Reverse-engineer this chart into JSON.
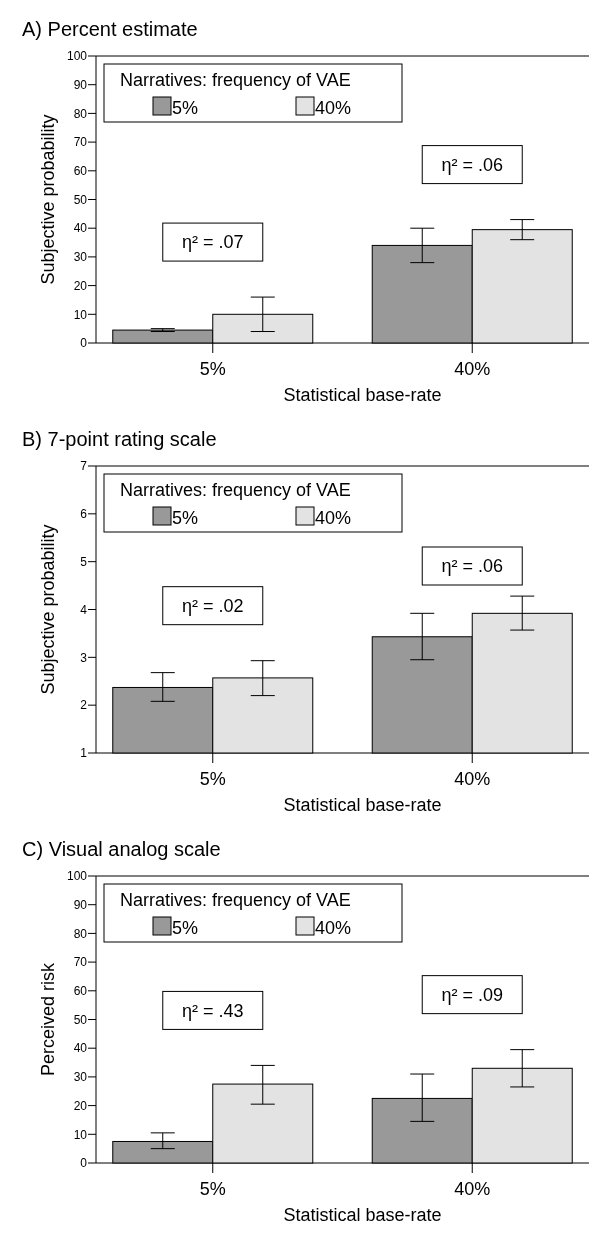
{
  "chart_data": [
    {
      "type": "bar",
      "title": "A) Percent estimate",
      "xlabel": "Statistical base-rate",
      "ylabel": "Subjective probability",
      "legend_title": "Narratives: frequency of VAE",
      "legend": "top left",
      "categories": [
        "5%",
        "40%"
      ],
      "series": [
        {
          "name": "5%",
          "color": "#999999",
          "values": [
            4.5,
            34
          ],
          "errors": [
            [
              4,
              5
            ],
            [
              28,
              40
            ]
          ]
        },
        {
          "name": "40%",
          "color": "#e3e3e3",
          "values": [
            10,
            39.5
          ],
          "errors": [
            [
              4,
              16
            ],
            [
              36,
              43
            ]
          ]
        }
      ],
      "ylim": [
        0,
        100
      ],
      "yticks": [
        0,
        10,
        20,
        30,
        40,
        50,
        60,
        70,
        80,
        90,
        100
      ],
      "annotations": [
        "η² = .07",
        "η² = .06"
      ]
    },
    {
      "type": "bar",
      "title": "B) 7-point rating scale",
      "xlabel": "Statistical base-rate",
      "ylabel": "Subjective probability",
      "legend_title": "Narratives: frequency of VAE",
      "legend": "top left",
      "categories": [
        "5%",
        "40%"
      ],
      "series": [
        {
          "name": "5%",
          "color": "#999999",
          "values": [
            2.37,
            3.43
          ],
          "errors": [
            [
              2.08,
              2.68
            ],
            [
              2.95,
              3.92
            ]
          ]
        },
        {
          "name": "40%",
          "color": "#e3e3e3",
          "values": [
            2.57,
            3.92
          ],
          "errors": [
            [
              2.2,
              2.93
            ],
            [
              3.57,
              4.28
            ]
          ]
        }
      ],
      "ylim": [
        1,
        7
      ],
      "yticks": [
        1,
        2,
        3,
        4,
        5,
        6,
        7
      ],
      "annotations": [
        "η² = .02",
        "η² = .06"
      ]
    },
    {
      "type": "bar",
      "title": "C) Visual analog scale",
      "xlabel": "Statistical base-rate",
      "ylabel": "Perceived risk",
      "legend_title": "Narratives: frequency of VAE",
      "legend": "top left",
      "categories": [
        "5%",
        "40%"
      ],
      "series": [
        {
          "name": "5%",
          "color": "#999999",
          "values": [
            7.5,
            22.5
          ],
          "errors": [
            [
              5,
              10.5
            ],
            [
              14.5,
              31
            ]
          ]
        },
        {
          "name": "40%",
          "color": "#e3e3e3",
          "values": [
            27.5,
            33
          ],
          "errors": [
            [
              20.5,
              34
            ],
            [
              26.5,
              39.5
            ]
          ]
        }
      ],
      "ylim": [
        0,
        100
      ],
      "yticks": [
        0,
        10,
        20,
        30,
        40,
        50,
        60,
        70,
        80,
        90,
        100
      ],
      "annotations": [
        "η² = .43",
        "η² = .09"
      ]
    }
  ]
}
